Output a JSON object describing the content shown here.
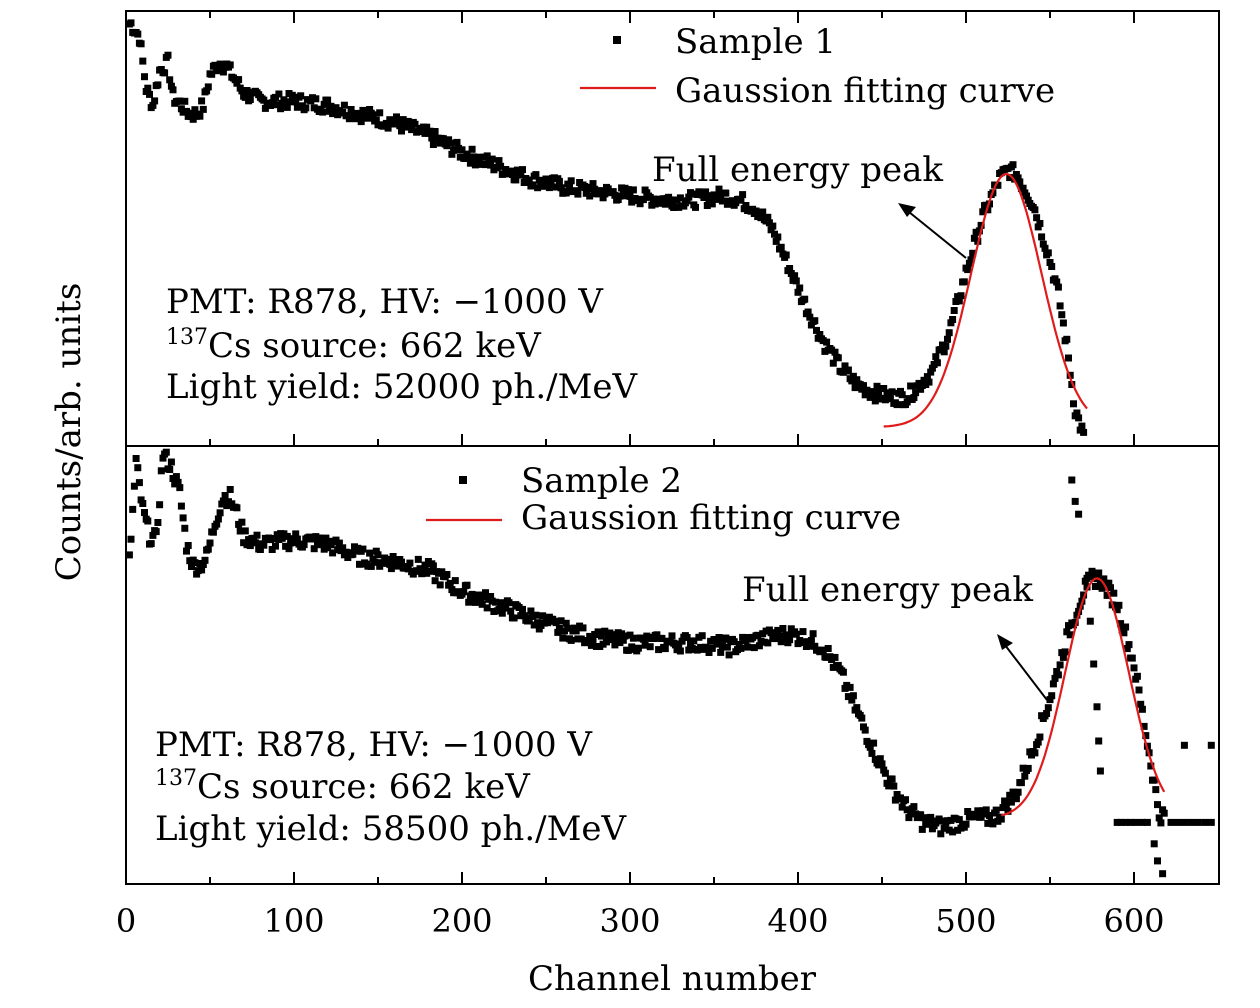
{
  "figure": {
    "ylabel": "Counts/arb. units",
    "xlabel": "Channel number",
    "xticks": [
      "0",
      "100",
      "200",
      "300",
      "400",
      "500",
      "600"
    ]
  },
  "chart_data": [
    {
      "type": "scatter",
      "panel": "top",
      "xlabel": "Channel number",
      "ylabel": "Counts/arb. units",
      "xlim": [
        0,
        650
      ],
      "ylim": [
        0,
        1
      ],
      "legend_position": "top-center",
      "legend": [
        "Sample 1",
        "Gaussion fitting curve"
      ],
      "annotation": "Full energy peak",
      "info": {
        "line1": "PMT: R878, HV: −1000 V",
        "cs_superscript": "137",
        "cs_text": "Cs source: 662 keV",
        "line3": "Light yield: 52000 ph./MeV"
      },
      "series": [
        {
          "name": "Sample 1",
          "kind": "scatter",
          "color": "#000000",
          "profile": [
            [
              3,
              0.97
            ],
            [
              8,
              0.94
            ],
            [
              12,
              0.82
            ],
            [
              16,
              0.78
            ],
            [
              20,
              0.86
            ],
            [
              25,
              0.88
            ],
            [
              28,
              0.8
            ],
            [
              33,
              0.78
            ],
            [
              38,
              0.76
            ],
            [
              42,
              0.76
            ],
            [
              46,
              0.78
            ],
            [
              50,
              0.85
            ],
            [
              55,
              0.88
            ],
            [
              60,
              0.87
            ],
            [
              65,
              0.84
            ],
            [
              70,
              0.81
            ],
            [
              80,
              0.79
            ],
            [
              100,
              0.79
            ],
            [
              120,
              0.78
            ],
            [
              140,
              0.76
            ],
            [
              160,
              0.74
            ],
            [
              180,
              0.71
            ],
            [
              200,
              0.67
            ],
            [
              220,
              0.64
            ],
            [
              240,
              0.61
            ],
            [
              260,
              0.59
            ],
            [
              280,
              0.58
            ],
            [
              300,
              0.57
            ],
            [
              320,
              0.56
            ],
            [
              340,
              0.56
            ],
            [
              355,
              0.57
            ],
            [
              365,
              0.56
            ],
            [
              375,
              0.54
            ],
            [
              385,
              0.49
            ],
            [
              395,
              0.4
            ],
            [
              405,
              0.31
            ],
            [
              415,
              0.23
            ],
            [
              425,
              0.17
            ],
            [
              435,
              0.13
            ],
            [
              445,
              0.11
            ],
            [
              455,
              0.1
            ],
            [
              465,
              0.1
            ],
            [
              470,
              0.12
            ],
            [
              480,
              0.16
            ],
            [
              490,
              0.25
            ],
            [
              500,
              0.39
            ],
            [
              510,
              0.52
            ],
            [
              520,
              0.61
            ],
            [
              525,
              0.63
            ],
            [
              530,
              0.62
            ],
            [
              540,
              0.55
            ],
            [
              550,
              0.42
            ],
            [
              555,
              0.34
            ],
            [
              560,
              0.22
            ],
            [
              565,
              0.07
            ],
            [
              570,
              0.01
            ]
          ],
          "noise": 0.018,
          "range": [
            2,
            570
          ]
        },
        {
          "name": "Gaussion fitting curve",
          "kind": "line",
          "color": "#e01b1b",
          "mu": 524,
          "sigma": 21,
          "amplitude": 0.59,
          "baseline": 0.03,
          "range": [
            451,
            572
          ]
        }
      ]
    },
    {
      "type": "scatter",
      "panel": "bottom",
      "xlabel": "Channel number",
      "ylabel": "Counts/arb. units",
      "xlim": [
        0,
        650
      ],
      "ylim": [
        0,
        1
      ],
      "legend_position": "top-center",
      "legend": [
        "Sample 2",
        "Gaussion fitting curve"
      ],
      "annotation": "Full energy peak",
      "info": {
        "line1": "PMT: R878, HV: −1000 V",
        "cs_superscript": "137",
        "cs_text": "Cs source: 662 keV",
        "line3": "Light yield: 58500 ph./MeV"
      },
      "series": [
        {
          "name": "Sample 2",
          "kind": "scatter",
          "color": "#000000",
          "profile": [
            [
              2,
              0.74
            ],
            [
              6,
              0.97
            ],
            [
              10,
              0.86
            ],
            [
              14,
              0.8
            ],
            [
              18,
              0.79
            ],
            [
              22,
              0.99
            ],
            [
              27,
              0.96
            ],
            [
              32,
              0.9
            ],
            [
              36,
              0.78
            ],
            [
              40,
              0.73
            ],
            [
              44,
              0.73
            ],
            [
              48,
              0.75
            ],
            [
              53,
              0.83
            ],
            [
              58,
              0.89
            ],
            [
              62,
              0.89
            ],
            [
              66,
              0.85
            ],
            [
              70,
              0.8
            ],
            [
              80,
              0.78
            ],
            [
              100,
              0.79
            ],
            [
              120,
              0.78
            ],
            [
              140,
              0.75
            ],
            [
              160,
              0.74
            ],
            [
              180,
              0.72
            ],
            [
              200,
              0.67
            ],
            [
              220,
              0.64
            ],
            [
              240,
              0.61
            ],
            [
              260,
              0.58
            ],
            [
              280,
              0.56
            ],
            [
              300,
              0.55
            ],
            [
              320,
              0.55
            ],
            [
              340,
              0.55
            ],
            [
              360,
              0.54
            ],
            [
              380,
              0.56
            ],
            [
              395,
              0.57
            ],
            [
              405,
              0.56
            ],
            [
              415,
              0.54
            ],
            [
              425,
              0.48
            ],
            [
              435,
              0.39
            ],
            [
              445,
              0.3
            ],
            [
              455,
              0.22
            ],
            [
              465,
              0.16
            ],
            [
              475,
              0.13
            ],
            [
              485,
              0.12
            ],
            [
              495,
              0.13
            ],
            [
              505,
              0.14
            ],
            [
              515,
              0.14
            ],
            [
              520,
              0.15
            ],
            [
              530,
              0.2
            ],
            [
              540,
              0.3
            ],
            [
              550,
              0.42
            ],
            [
              560,
              0.56
            ],
            [
              570,
              0.67
            ],
            [
              575,
              0.7
            ],
            [
              580,
              0.7
            ],
            [
              590,
              0.64
            ],
            [
              600,
              0.5
            ],
            [
              610,
              0.27
            ],
            [
              615,
              0.15
            ],
            [
              620,
              0.14
            ]
          ],
          "noise": 0.02,
          "range": [
            2,
            618
          ],
          "extra_points": [
            [
              563,
              0.93
            ],
            [
              565,
              0.88
            ],
            [
              567,
              0.85
            ],
            [
              572,
              0.68
            ],
            [
              574,
              0.6
            ],
            [
              576,
              0.5
            ],
            [
              578,
              0.4
            ],
            [
              579,
              0.32
            ],
            [
              580,
              0.25
            ],
            [
              590,
              0.13
            ],
            [
              592,
              0.13
            ],
            [
              595,
              0.13
            ],
            [
              598,
              0.13
            ],
            [
              601,
              0.13
            ],
            [
              605,
              0.13
            ],
            [
              608,
              0.13
            ],
            [
              612,
              0.08
            ],
            [
              614,
              0.04
            ],
            [
              617,
              0.01
            ],
            [
              622,
              0.13
            ],
            [
              626,
              0.13
            ],
            [
              630,
              0.13
            ],
            [
              634,
              0.13
            ],
            [
              638,
              0.13
            ],
            [
              642,
              0.13
            ],
            [
              646,
              0.13
            ],
            [
              646,
              0.31
            ],
            [
              630,
              0.31
            ]
          ]
        },
        {
          "name": "Gaussion fitting curve",
          "kind": "line",
          "color": "#e01b1b",
          "mu": 578,
          "sigma": 19,
          "amplitude": 0.56,
          "baseline": 0.14,
          "range": [
            521,
            618
          ]
        }
      ]
    }
  ]
}
